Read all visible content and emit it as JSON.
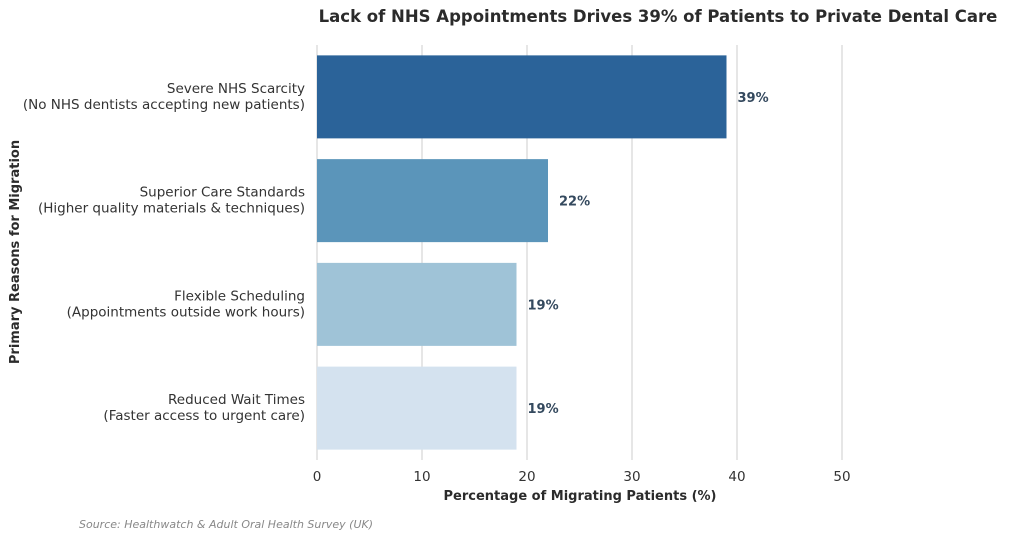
{
  "chart_data": {
    "type": "bar",
    "orientation": "horizontal",
    "title": "Lack of NHS Appointments Drives 39% of Patients to Private Dental Care",
    "xlabel": "Percentage of Migrating Patients (%)",
    "ylabel": "Primary Reasons for Migration",
    "categories": [
      [
        "Severe NHS Scarcity",
        "(No NHS dentists accepting new patients)"
      ],
      [
        "Superior Care Standards",
        "(Higher quality materials & techniques)"
      ],
      [
        "Flexible Scheduling",
        "(Appointments outside work hours)"
      ],
      [
        "Reduced Wait Times",
        "(Faster access to urgent care)"
      ]
    ],
    "values": [
      39,
      22,
      19,
      19
    ],
    "value_labels": [
      "39%",
      "22%",
      "19%",
      "19%"
    ],
    "colors": [
      "#2b6399",
      "#5b95ba",
      "#9fc3d7",
      "#d4e2ef"
    ],
    "xlim": [
      0,
      50
    ],
    "xticks": [
      0,
      10,
      20,
      30,
      40,
      50
    ],
    "grid": "vertical",
    "legend": "none"
  },
  "source": "Source: Healthwatch & Adult Oral Health Survey (UK)"
}
